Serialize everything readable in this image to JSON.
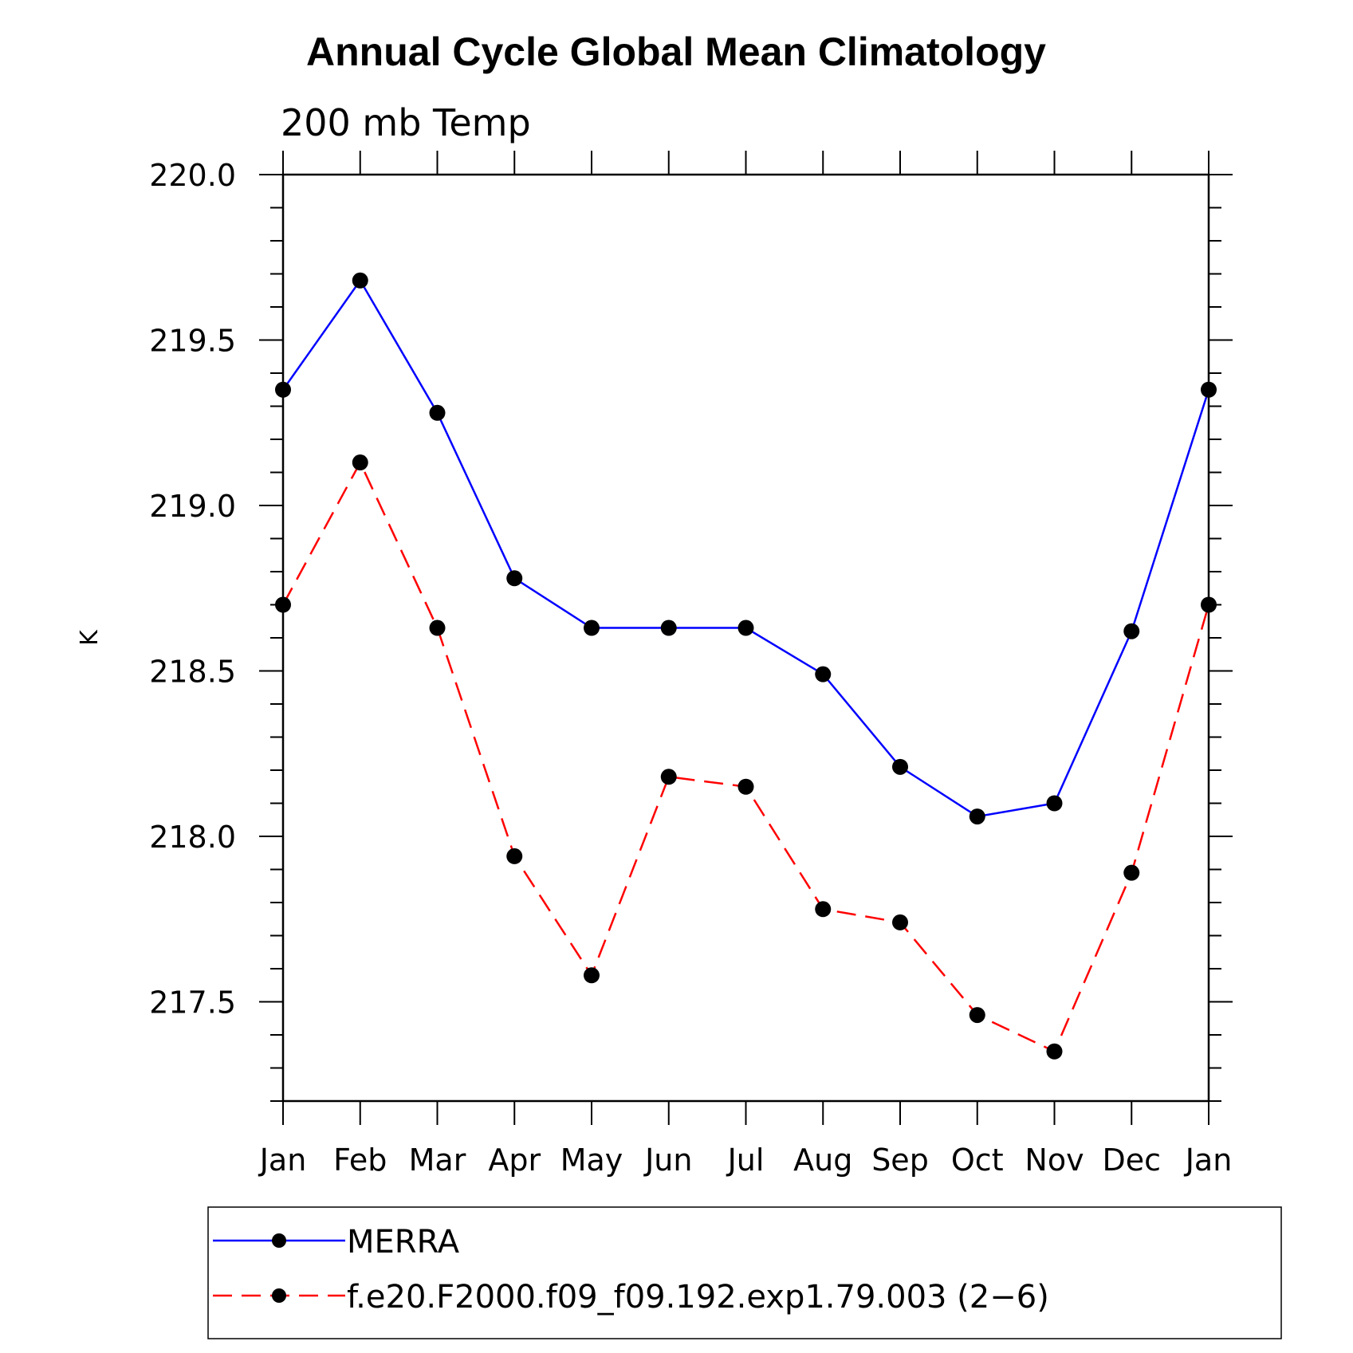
{
  "chart_data": {
    "type": "line",
    "title": "Annual Cycle Global Mean Climatology",
    "subtitle": "200 mb Temp",
    "ylabel": "K",
    "xlabel": "",
    "categories": [
      "Jan",
      "Feb",
      "Mar",
      "Apr",
      "May",
      "Jun",
      "Jul",
      "Aug",
      "Sep",
      "Oct",
      "Nov",
      "Dec",
      "Jan"
    ],
    "ylim": [
      217.2,
      220.0
    ],
    "yticks": [
      "217.5",
      "218.0",
      "218.5",
      "219.0",
      "219.5",
      "220.0"
    ],
    "grid": false,
    "legend_position": "bottom",
    "series": [
      {
        "name": "MERRA",
        "color": "#0000ff",
        "dash": "solid",
        "values": [
          219.35,
          219.68,
          219.28,
          218.78,
          218.63,
          218.63,
          218.63,
          218.49,
          218.21,
          218.06,
          218.1,
          218.62,
          219.35
        ]
      },
      {
        "name": "f.e20.F2000.f09_f09.192.exp1.79.003 (2−6)",
        "color": "#ff0000",
        "dash": "dashed",
        "values": [
          218.7,
          219.13,
          218.63,
          217.94,
          217.58,
          218.18,
          218.15,
          217.78,
          217.74,
          217.46,
          217.35,
          217.89,
          218.7
        ]
      }
    ]
  }
}
